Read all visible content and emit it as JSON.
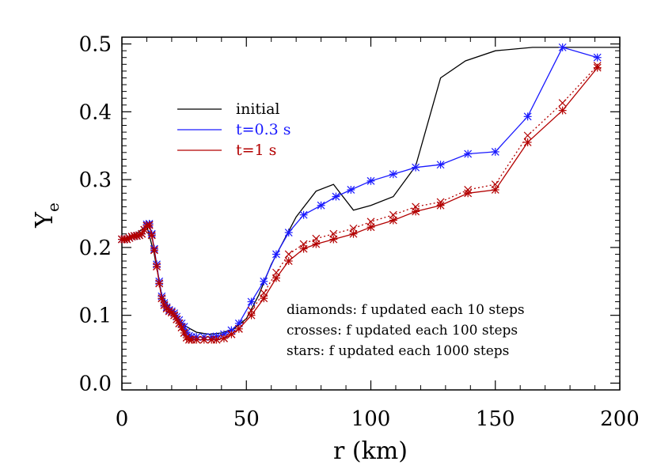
{
  "chart_data": {
    "type": "line",
    "xlabel": "r (km)",
    "ylabel_main": "Y",
    "ylabel_sub": "e",
    "xlim": [
      0,
      200
    ],
    "ylim": [
      -0.01,
      0.51
    ],
    "xticks": [
      "0",
      "50",
      "100",
      "150",
      "200"
    ],
    "yticks": [
      "0.0",
      "0.1",
      "0.2",
      "0.3",
      "0.4",
      "0.5"
    ],
    "grid": false,
    "legend_position": "top-left",
    "colors": {
      "initial": "#000000",
      "blue": "#1a1aff",
      "red": "#b30000"
    },
    "series": [
      {
        "name": "initial",
        "color": "#000000",
        "style": "solid",
        "marker": "none",
        "x": [
          0,
          5,
          10,
          13,
          16,
          20,
          25,
          30,
          35,
          40,
          45,
          50,
          55,
          60,
          65,
          70,
          78,
          85,
          93,
          100,
          109,
          118,
          128,
          138,
          150,
          165,
          177,
          200
        ],
        "y": [
          0.212,
          0.218,
          0.232,
          0.19,
          0.13,
          0.105,
          0.085,
          0.075,
          0.072,
          0.074,
          0.08,
          0.095,
          0.13,
          0.175,
          0.21,
          0.245,
          0.283,
          0.293,
          0.255,
          0.262,
          0.275,
          0.32,
          0.45,
          0.475,
          0.49,
          0.495,
          0.495,
          0.495
        ]
      },
      {
        "name": "t=0.3 s",
        "color": "#1a1aff",
        "style": "solid",
        "marker": "star",
        "x": [
          0,
          1,
          2,
          3,
          4,
          5,
          6,
          7,
          8,
          9,
          10,
          11,
          12,
          13,
          14,
          15,
          16,
          17,
          18,
          19,
          20,
          21,
          22,
          23,
          24,
          25,
          26,
          27,
          28,
          30,
          33,
          36,
          38,
          41,
          44,
          47,
          52,
          57,
          62,
          67,
          73,
          80,
          86,
          92,
          100,
          109,
          118,
          128,
          139,
          150,
          163,
          177,
          191
        ],
        "y": [
          0.212,
          0.212,
          0.212,
          0.214,
          0.216,
          0.217,
          0.217,
          0.218,
          0.22,
          0.226,
          0.234,
          0.235,
          0.22,
          0.198,
          0.175,
          0.15,
          0.128,
          0.118,
          0.112,
          0.108,
          0.106,
          0.103,
          0.098,
          0.093,
          0.088,
          0.083,
          0.075,
          0.07,
          0.068,
          0.068,
          0.068,
          0.068,
          0.069,
          0.072,
          0.078,
          0.088,
          0.12,
          0.15,
          0.19,
          0.222,
          0.248,
          0.262,
          0.275,
          0.285,
          0.298,
          0.308,
          0.318,
          0.322,
          0.338,
          0.341,
          0.393,
          0.495,
          0.48
        ]
      },
      {
        "name": "crosses (dotted)",
        "color": "#b30000",
        "style": "dotted",
        "marker": "cross",
        "x": [
          0,
          1,
          2,
          3,
          4,
          5,
          6,
          7,
          8,
          9,
          10,
          11,
          12,
          13,
          14,
          15,
          16,
          17,
          18,
          19,
          20,
          21,
          22,
          23,
          24,
          25,
          26,
          27,
          28,
          30,
          33,
          36,
          38,
          41,
          44,
          47,
          52,
          57,
          62,
          67,
          73,
          78,
          85,
          93,
          100,
          109,
          118,
          128,
          139,
          150,
          163,
          177,
          191
        ],
        "y": [
          0.212,
          0.212,
          0.212,
          0.214,
          0.216,
          0.217,
          0.217,
          0.218,
          0.22,
          0.226,
          0.232,
          0.233,
          0.218,
          0.196,
          0.172,
          0.147,
          0.125,
          0.115,
          0.11,
          0.106,
          0.104,
          0.1,
          0.094,
          0.088,
          0.082,
          0.074,
          0.067,
          0.064,
          0.064,
          0.064,
          0.064,
          0.064,
          0.064,
          0.066,
          0.072,
          0.08,
          0.107,
          0.133,
          0.163,
          0.19,
          0.205,
          0.213,
          0.22,
          0.228,
          0.238,
          0.248,
          0.26,
          0.267,
          0.285,
          0.293,
          0.365,
          0.413,
          0.468
        ]
      },
      {
        "name": "t=1 s",
        "color": "#b30000",
        "style": "solid",
        "marker": "star",
        "x": [
          0,
          1,
          2,
          3,
          4,
          5,
          6,
          7,
          8,
          9,
          10,
          11,
          12,
          13,
          14,
          15,
          16,
          17,
          18,
          19,
          20,
          21,
          22,
          23,
          24,
          25,
          26,
          27,
          28,
          30,
          33,
          36,
          38,
          41,
          44,
          47,
          52,
          57,
          62,
          67,
          73,
          78,
          85,
          93,
          100,
          109,
          118,
          128,
          139,
          150,
          163,
          177,
          191
        ],
        "y": [
          0.212,
          0.212,
          0.212,
          0.214,
          0.216,
          0.217,
          0.217,
          0.218,
          0.22,
          0.226,
          0.232,
          0.233,
          0.218,
          0.196,
          0.172,
          0.147,
          0.125,
          0.115,
          0.11,
          0.106,
          0.104,
          0.1,
          0.094,
          0.088,
          0.082,
          0.074,
          0.067,
          0.064,
          0.064,
          0.064,
          0.064,
          0.064,
          0.064,
          0.066,
          0.072,
          0.08,
          0.1,
          0.125,
          0.155,
          0.18,
          0.198,
          0.205,
          0.212,
          0.22,
          0.23,
          0.24,
          0.253,
          0.262,
          0.28,
          0.285,
          0.355,
          0.402,
          0.465
        ]
      }
    ],
    "legend": [
      {
        "label": "initial",
        "color": "#000000"
      },
      {
        "label": "t=0.3 s",
        "color": "#1a1aff"
      },
      {
        "label": "t=1 s",
        "color": "#b30000"
      }
    ],
    "annotations": [
      "diamonds: f updated each 10 steps",
      "crosses: f updated each 100 steps",
      "stars: f updated each 1000 steps"
    ]
  }
}
